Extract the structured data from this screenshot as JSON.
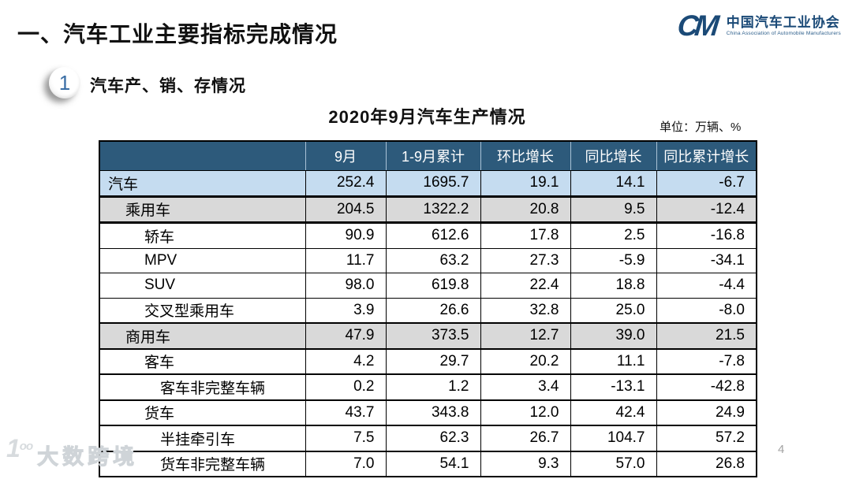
{
  "page": {
    "title": "一、汽车工业主要指标完成情况",
    "section_number": "1",
    "section_title": "汽车产、销、存情况",
    "page_number": "4",
    "watermark_logo": "1oo",
    "watermark_text": "大数跨境"
  },
  "logo": {
    "monogram": "CM",
    "name_cn": "中国汽车工业协会",
    "name_en": "China Association of Automobile Manufacturers"
  },
  "table": {
    "title": "2020年9月汽车生产情况",
    "unit_label": "单位：万辆、%",
    "columns": [
      "",
      "9月",
      "1-9月累计",
      "环比增长",
      "同比增长",
      "同比累计增长"
    ],
    "rows": [
      {
        "label": "汽车",
        "indent": 0,
        "emphasis": "total",
        "values": [
          "252.4",
          "1695.7",
          "19.1",
          "14.1",
          "-6.7"
        ]
      },
      {
        "label": "乘用车",
        "indent": 1,
        "emphasis": "subtotal",
        "values": [
          "204.5",
          "1322.2",
          "20.8",
          "9.5",
          "-12.4"
        ]
      },
      {
        "label": "轿车",
        "indent": 2,
        "emphasis": "none",
        "values": [
          "90.9",
          "612.6",
          "17.8",
          "2.5",
          "-16.8"
        ]
      },
      {
        "label": "MPV",
        "indent": 2,
        "emphasis": "none",
        "values": [
          "11.7",
          "63.2",
          "27.3",
          "-5.9",
          "-34.1"
        ]
      },
      {
        "label": "SUV",
        "indent": 2,
        "emphasis": "none",
        "values": [
          "98.0",
          "619.8",
          "22.4",
          "18.8",
          "-4.4"
        ]
      },
      {
        "label": "交叉型乘用车",
        "indent": 2,
        "emphasis": "none",
        "values": [
          "3.9",
          "26.6",
          "32.8",
          "25.0",
          "-8.0"
        ]
      },
      {
        "label": "商用车",
        "indent": 1,
        "emphasis": "subtotal",
        "values": [
          "47.9",
          "373.5",
          "12.7",
          "39.0",
          "21.5"
        ]
      },
      {
        "label": "客车",
        "indent": 2,
        "emphasis": "none",
        "values": [
          "4.2",
          "29.7",
          "20.2",
          "11.1",
          "-7.8"
        ]
      },
      {
        "label": "客车非完整车辆",
        "indent": 3,
        "emphasis": "none",
        "values": [
          "0.2",
          "1.2",
          "3.4",
          "-13.1",
          "-42.8"
        ]
      },
      {
        "label": "货车",
        "indent": 2,
        "emphasis": "none",
        "values": [
          "43.7",
          "343.8",
          "12.0",
          "42.4",
          "24.9"
        ]
      },
      {
        "label": "半挂牵引车",
        "indent": 3,
        "emphasis": "none",
        "values": [
          "7.5",
          "62.3",
          "26.7",
          "104.7",
          "57.2"
        ]
      },
      {
        "label": "货车非完整车辆",
        "indent": 3,
        "emphasis": "none",
        "values": [
          "7.0",
          "54.1",
          "9.3",
          "57.0",
          "26.8"
        ]
      }
    ]
  },
  "colors": {
    "header_bg": "#2d5a7b",
    "total_row_bg": "#c5dcf0",
    "subtotal_row_bg": "#d9d9d9",
    "brand_navy": "#1b4a77"
  }
}
